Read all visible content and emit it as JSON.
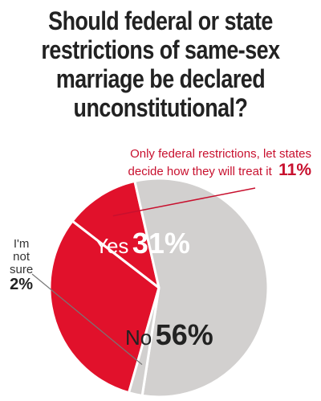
{
  "chart_data": {
    "type": "pie",
    "title_lines": [
      "Should federal or state",
      "restrictions of same-sex",
      "marriage be declared",
      "unconstitutional?"
    ],
    "slices": [
      {
        "label": "Yes",
        "value": 31,
        "display": "31%",
        "color": "#e1112b"
      },
      {
        "label": "Only federal restrictions, let states decide how they will treat it",
        "value": 11,
        "display": "11%",
        "color": "#e1112b"
      },
      {
        "label": "No",
        "value": 56,
        "display": "56%",
        "color": "#d2d0cf"
      },
      {
        "label": "I'm not sure",
        "value": 2,
        "display": "2%",
        "color": "#d2d0cf"
      }
    ],
    "legend": "none"
  },
  "labels": {
    "yes_word": "Yes",
    "yes_pct": "31%",
    "no_word": "No",
    "no_pct": "56%",
    "fed_line1": "Only federal restrictions, let states",
    "fed_line2": "decide how they will treat it",
    "fed_pct": "11%",
    "ns_line1": "I'm",
    "ns_line2": "not",
    "ns_line3": "sure",
    "ns_pct": "2%"
  },
  "colors": {
    "accent": "#e1112b",
    "neutral": "#d2d0cf",
    "separator": "#ffffff",
    "leader": "#c8102e"
  }
}
